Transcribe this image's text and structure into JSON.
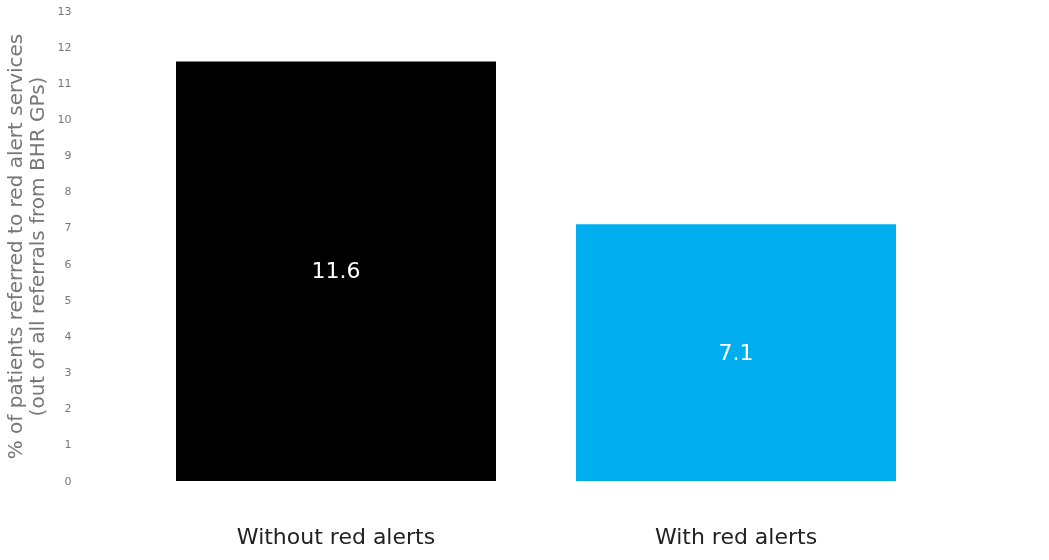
{
  "chart_data": {
    "type": "bar",
    "ylabel": "% of patients referred to red alert services\n(out of all referrals from BHR GPs)",
    "categories": [
      "Without red alerts",
      "With red alerts"
    ],
    "values": [
      11.6,
      7.1
    ],
    "colors": [
      "#000000",
      "#00aeef"
    ],
    "ylim": [
      0,
      13
    ],
    "yticks": [
      0,
      1,
      2,
      3,
      4,
      5,
      6,
      7,
      8,
      9,
      10,
      11,
      12,
      13
    ],
    "grid": false,
    "data_labels": true
  }
}
